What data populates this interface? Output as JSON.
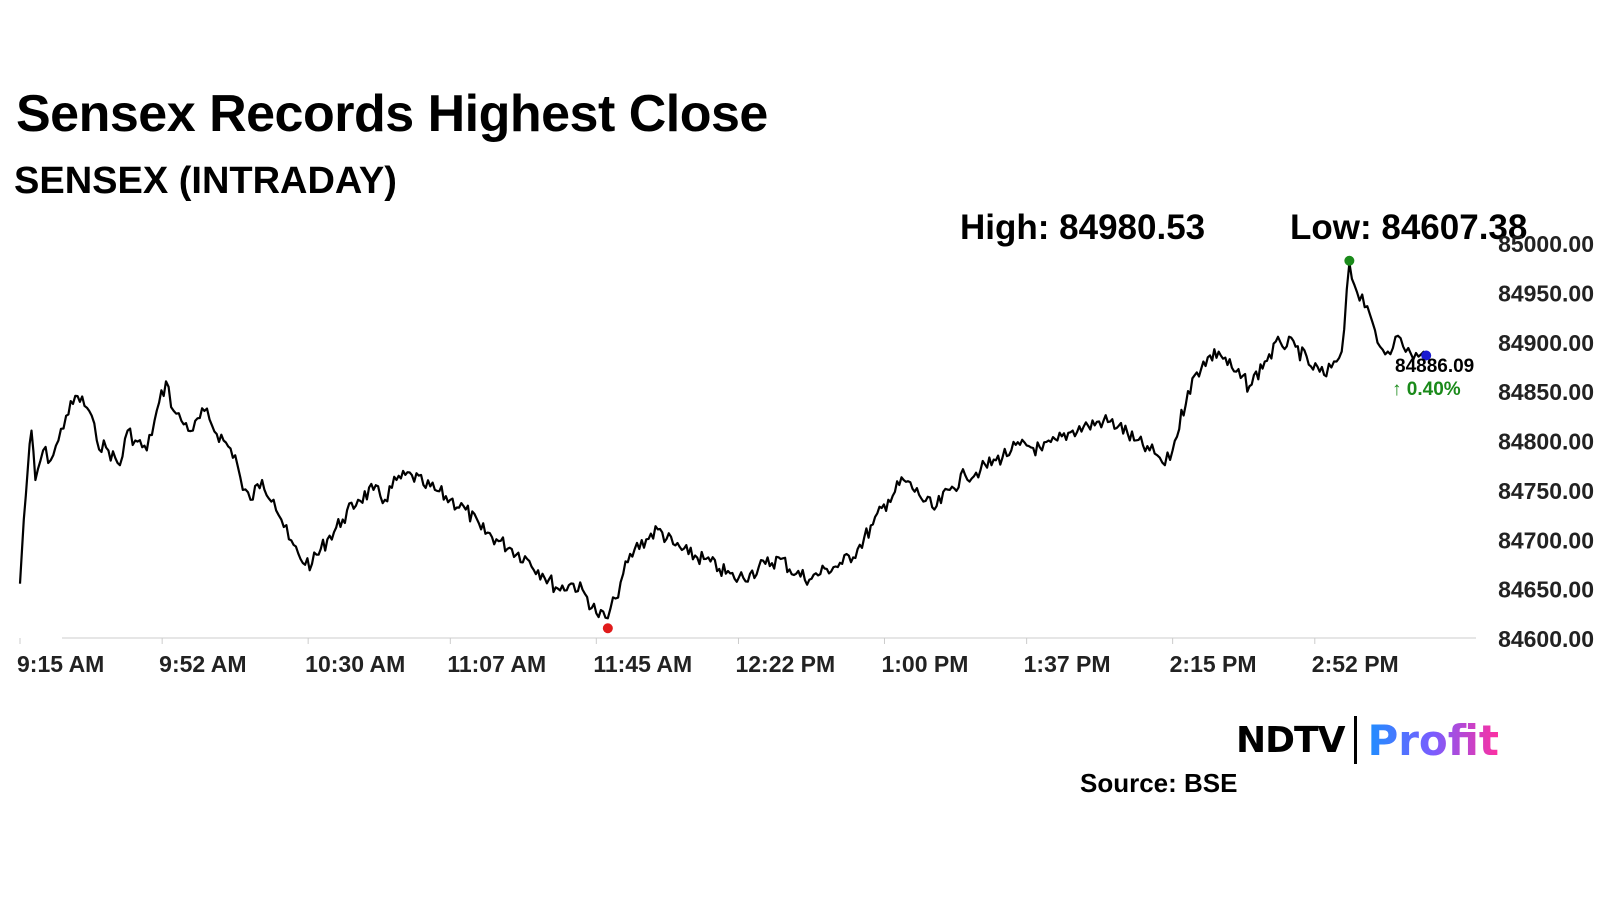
{
  "header": {
    "title": "Sensex Records Highest Close",
    "subtitle": "SENSEX (INTRADAY)",
    "high_label": "High: 84980.53",
    "low_label": "Low: 84607.38"
  },
  "footer": {
    "source": "Source: BSE",
    "logo_ndtv": "NDTV",
    "logo_profit": "Profit"
  },
  "colors": {
    "line": "#000000",
    "high_marker": "#1a8a1a",
    "low_marker": "#e01b1b",
    "last_marker": "#1a1ad0",
    "change_up": "#1a8a1a",
    "axis": "#dddddd"
  },
  "chart_data": {
    "type": "line",
    "title": "SENSEX (INTRADAY)",
    "xlabel": "",
    "ylabel": "",
    "xlim": [
      0,
      380
    ],
    "ylim": [
      84600,
      85000
    ],
    "x_ticks": [
      {
        "t": 0,
        "label": "9:15 AM"
      },
      {
        "t": 37,
        "label": "9:52 AM"
      },
      {
        "t": 75,
        "label": "10:30 AM"
      },
      {
        "t": 112,
        "label": "11:07 AM"
      },
      {
        "t": 150,
        "label": "11:45 AM"
      },
      {
        "t": 187,
        "label": "12:22 PM"
      },
      {
        "t": 225,
        "label": "1:00 PM"
      },
      {
        "t": 262,
        "label": "1:37 PM"
      },
      {
        "t": 300,
        "label": "2:15 PM"
      },
      {
        "t": 337,
        "label": "2:52 PM"
      }
    ],
    "y_ticks": [
      "84600.00",
      "84650.00",
      "84700.00",
      "84750.00",
      "84800.00",
      "84850.00",
      "84900.00",
      "84950.00",
      "85000.00"
    ],
    "series": [
      {
        "name": "SENSEX",
        "x_minutes": [
          0,
          1,
          2,
          3,
          4,
          6,
          8,
          10,
          12,
          15,
          18,
          20,
          23,
          26,
          28,
          30,
          33,
          35,
          38,
          40,
          42,
          45,
          48,
          50,
          53,
          56,
          58,
          60,
          63,
          66,
          68,
          70,
          73,
          76,
          80,
          84,
          88,
          92,
          95,
          98,
          102,
          105,
          108,
          112,
          116,
          120,
          124,
          128,
          132,
          136,
          140,
          144,
          147,
          150,
          153,
          155,
          157,
          160,
          163,
          166,
          170,
          174,
          178,
          182,
          186,
          190,
          194,
          198,
          202,
          206,
          210,
          214,
          218,
          222,
          226,
          230,
          234,
          238,
          242,
          246,
          250,
          254,
          258,
          262,
          266,
          270,
          274,
          278,
          282,
          286,
          290,
          294,
          296,
          298,
          300,
          304,
          308,
          312,
          316,
          320,
          324,
          328,
          332,
          336,
          340,
          342,
          344,
          346,
          348,
          350,
          352,
          354,
          356,
          358,
          360,
          362,
          364,
          366
        ],
        "values": [
          84655,
          84720,
          84770,
          84810,
          84760,
          84790,
          84780,
          84800,
          84825,
          84845,
          84830,
          84800,
          84790,
          84775,
          84810,
          84800,
          84790,
          84820,
          84860,
          84830,
          84820,
          84810,
          84830,
          84815,
          84800,
          84785,
          84750,
          84740,
          84760,
          84740,
          84720,
          84700,
          84680,
          84675,
          84700,
          84720,
          84740,
          84750,
          84740,
          84760,
          84765,
          84755,
          84750,
          84740,
          84730,
          84710,
          84700,
          84690,
          84680,
          84665,
          84650,
          84655,
          84645,
          84625,
          84620,
          84640,
          84665,
          84690,
          84700,
          84710,
          84695,
          84685,
          84680,
          84670,
          84660,
          84665,
          84675,
          84680,
          84665,
          84660,
          84670,
          84675,
          84690,
          84715,
          84740,
          84760,
          84745,
          84730,
          84750,
          84765,
          84770,
          84780,
          84790,
          84795,
          84790,
          84800,
          84810,
          84815,
          84820,
          84815,
          84800,
          84790,
          84785,
          84775,
          84790,
          84850,
          84880,
          84890,
          84870,
          84855,
          84880,
          84900,
          84895,
          84875,
          84865,
          84880,
          84890,
          84980,
          84950,
          84935,
          84920,
          84895,
          84890,
          84905,
          84895,
          84888,
          84885,
          84886.09
        ]
      }
    ],
    "high": 84980.53,
    "low": 84607.38,
    "last": {
      "value_label": "84886.09",
      "change_label": "↑ 0.40%"
    }
  }
}
